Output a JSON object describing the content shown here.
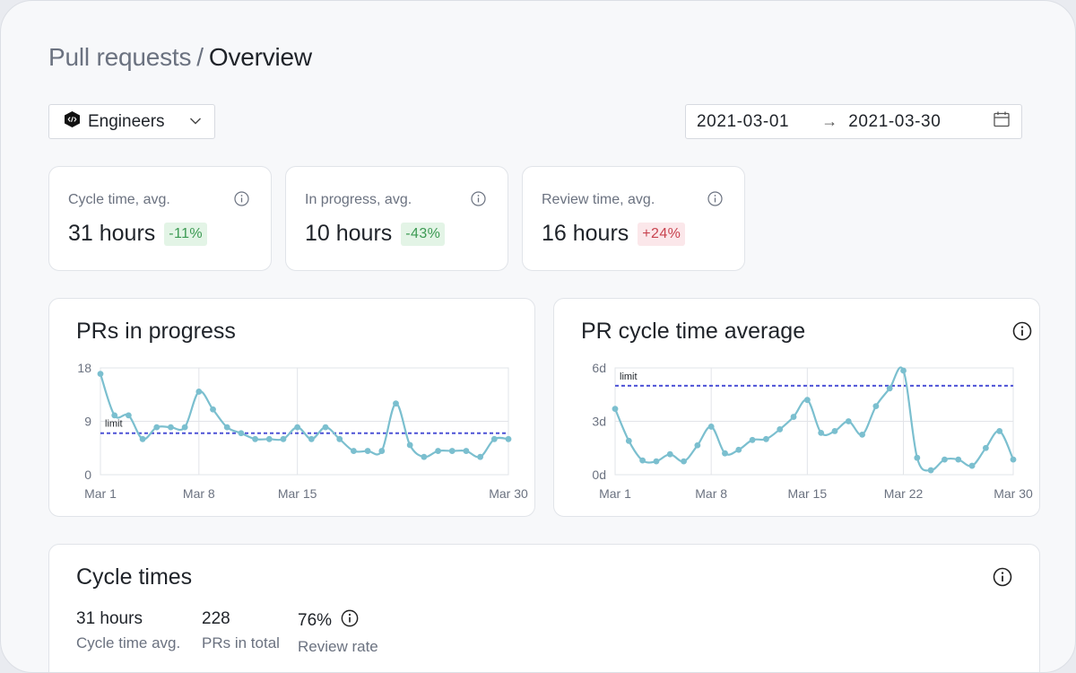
{
  "breadcrumb": {
    "parent": "Pull requests",
    "separator": "/",
    "current": "Overview"
  },
  "team_select": {
    "selected": "Engineers",
    "icon": "code-hexagon-icon"
  },
  "date_range": {
    "start": "2021-03-01",
    "arrow": "→",
    "end": "2021-03-30",
    "icon": "calendar-icon"
  },
  "stats": [
    {
      "title": "Cycle time, avg.",
      "value": "31 hours",
      "delta": "-11%",
      "trend": "good"
    },
    {
      "title": "In progress, avg.",
      "value": "10 hours",
      "delta": "-43%",
      "trend": "good"
    },
    {
      "title": "Review time, avg.",
      "value": "16 hours",
      "delta": "+24%",
      "trend": "bad"
    }
  ],
  "colors": {
    "line": "#7bbfcf",
    "limit": "#4d52d6",
    "good": "#3c9a53",
    "bad": "#c8434f"
  },
  "chart_data": [
    {
      "type": "line",
      "title": "PRs in progress",
      "x_ticks": [
        "Mar 1",
        "Mar 8",
        "Mar 15",
        "Mar 30"
      ],
      "y_ticks": [
        "18",
        "9",
        "0"
      ],
      "ylim": [
        0,
        18
      ],
      "limit": {
        "label": "limit",
        "value": 7
      },
      "x": [
        1,
        2,
        3,
        4,
        5,
        6,
        7,
        8,
        9,
        10,
        11,
        12,
        13,
        14,
        15,
        16,
        17,
        18,
        19,
        20,
        21,
        22,
        23,
        24,
        25,
        26,
        27,
        28,
        29,
        30
      ],
      "values": [
        17,
        10,
        10,
        6,
        8,
        8,
        8,
        14,
        11,
        8,
        7,
        6,
        6,
        6,
        8,
        6,
        8,
        6,
        4,
        4,
        4,
        12,
        5,
        3,
        4,
        4,
        4,
        3,
        6,
        6
      ],
      "grid": true
    },
    {
      "type": "line",
      "title": "PR cycle time average",
      "x_ticks": [
        "Mar 1",
        "Mar 8",
        "Mar 15",
        "Mar 22",
        "Mar 30"
      ],
      "y_ticks": [
        "6d",
        "3d",
        "0d"
      ],
      "ylim": [
        0,
        6
      ],
      "limit": {
        "label": "limit",
        "value": 5
      },
      "x": [
        1,
        2,
        3,
        4,
        5,
        6,
        7,
        8,
        9,
        10,
        11,
        12,
        13,
        14,
        15,
        16,
        17,
        18,
        19,
        20,
        21,
        22,
        23,
        24,
        25,
        26,
        27,
        28,
        29,
        30
      ],
      "values": [
        3.7,
        1.9,
        0.8,
        0.75,
        1.15,
        0.75,
        1.65,
        2.7,
        1.2,
        1.4,
        1.95,
        2.0,
        2.55,
        3.25,
        4.2,
        2.35,
        2.45,
        3.0,
        2.25,
        3.85,
        4.85,
        5.85,
        0.95,
        0.25,
        0.85,
        0.85,
        0.5,
        1.5,
        2.45,
        0.85
      ],
      "grid": true
    }
  ],
  "cycle_times": {
    "title": "Cycle times",
    "metrics": [
      {
        "value": "31 hours",
        "label": "Cycle time avg."
      },
      {
        "value": "228",
        "label": "PRs in total"
      },
      {
        "value": "76%",
        "label": "Review rate"
      }
    ]
  }
}
